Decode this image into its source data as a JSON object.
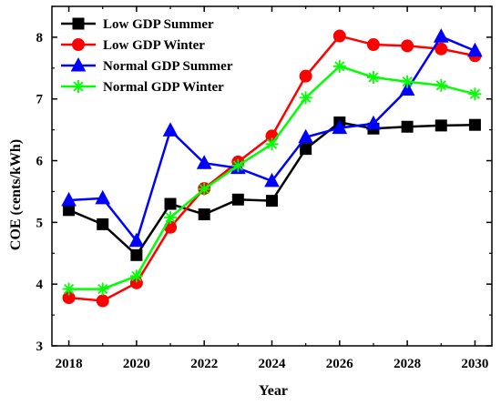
{
  "chart_data": {
    "type": "line",
    "xlabel": "Year",
    "ylabel": "COE (cents/kWh)",
    "xlim": [
      2017.5,
      2030.5
    ],
    "ylim": [
      3,
      8.5
    ],
    "x_ticks": [
      "2018",
      "2020",
      "2022",
      "2024",
      "2026",
      "2028",
      "2030"
    ],
    "y_ticks": [
      "3",
      "4",
      "5",
      "6",
      "7",
      "8"
    ],
    "x": [
      2018,
      2019,
      2020,
      2021,
      2022,
      2023,
      2024,
      2025,
      2026,
      2027,
      2028,
      2029,
      2030
    ],
    "legend_position": "top-left",
    "grid": false,
    "series": [
      {
        "name": "Low GDP Summer",
        "color": "#000000",
        "marker": "square",
        "values": [
          5.2,
          4.97,
          4.47,
          5.3,
          5.13,
          5.37,
          5.35,
          6.19,
          6.62,
          6.52,
          6.55,
          6.57,
          6.58
        ]
      },
      {
        "name": "Low GDP Winter",
        "color": "#ff0000",
        "marker": "circle",
        "values": [
          3.78,
          3.73,
          4.02,
          4.92,
          5.55,
          5.98,
          6.4,
          7.37,
          8.02,
          7.88,
          7.86,
          7.81,
          7.7
        ]
      },
      {
        "name": "Normal GDP Summer",
        "color": "#0000ff",
        "marker": "triangle",
        "values": [
          5.36,
          5.39,
          4.7,
          6.49,
          5.96,
          5.88,
          5.67,
          6.38,
          6.53,
          6.6,
          7.15,
          8.01,
          7.78
        ]
      },
      {
        "name": "Normal GDP Winter",
        "color": "#00ff00",
        "marker": "asterisk",
        "values": [
          3.92,
          3.92,
          4.13,
          5.08,
          5.54,
          5.92,
          6.27,
          7.02,
          7.53,
          7.35,
          7.28,
          7.22,
          7.08
        ]
      }
    ]
  }
}
